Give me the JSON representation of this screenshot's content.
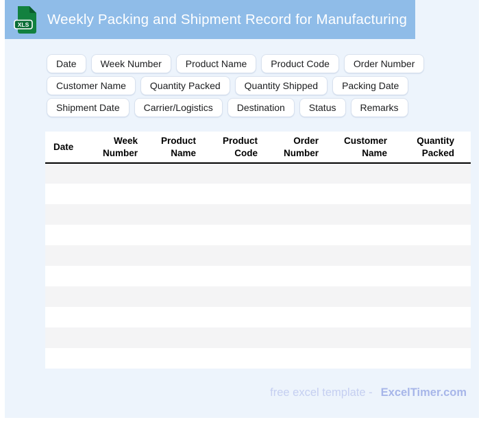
{
  "header": {
    "title": "Weekly Packing and Shipment Record for Manufacturing",
    "icon_label": "XLS"
  },
  "chips": {
    "items": [
      {
        "label": "Date"
      },
      {
        "label": "Week Number"
      },
      {
        "label": "Product Name"
      },
      {
        "label": "Product Code"
      },
      {
        "label": "Order Number"
      },
      {
        "label": "Customer Name"
      },
      {
        "label": "Quantity Packed"
      },
      {
        "label": "Quantity Shipped"
      },
      {
        "label": "Packing Date"
      },
      {
        "label": "Shipment Date"
      },
      {
        "label": "Carrier/Logistics"
      },
      {
        "label": "Destination"
      },
      {
        "label": "Status"
      },
      {
        "label": "Remarks"
      }
    ]
  },
  "table": {
    "columns": [
      "Date",
      "Week\nNumber",
      "Product\nName",
      "Product\nCode",
      "Order\nNumber",
      "Customer\nName",
      "Quantity\nPacked"
    ],
    "rows": [
      [
        "",
        "",
        "",
        "",
        "",
        "",
        ""
      ],
      [
        "",
        "",
        "",
        "",
        "",
        "",
        ""
      ],
      [
        "",
        "",
        "",
        "",
        "",
        "",
        ""
      ],
      [
        "",
        "",
        "",
        "",
        "",
        "",
        ""
      ],
      [
        "",
        "",
        "",
        "",
        "",
        "",
        ""
      ],
      [
        "",
        "",
        "",
        "",
        "",
        "",
        ""
      ],
      [
        "",
        "",
        "",
        "",
        "",
        "",
        ""
      ],
      [
        "",
        "",
        "",
        "",
        "",
        "",
        ""
      ],
      [
        "",
        "",
        "",
        "",
        "",
        "",
        ""
      ],
      [
        "",
        "",
        "",
        "",
        "",
        "",
        ""
      ]
    ]
  },
  "footer": {
    "prefix": "free excel template -",
    "brand": "ExcelTimer.com"
  },
  "colors": {
    "titlebar": "#8FBCE8",
    "page_background": "#EDF4FC",
    "stripe": "#F4F4F5",
    "icon_green": "#12813F",
    "icon_green_dark": "#0A6D35",
    "footer_text": "#C5CFF1",
    "footer_brand": "#A7B6E9"
  }
}
